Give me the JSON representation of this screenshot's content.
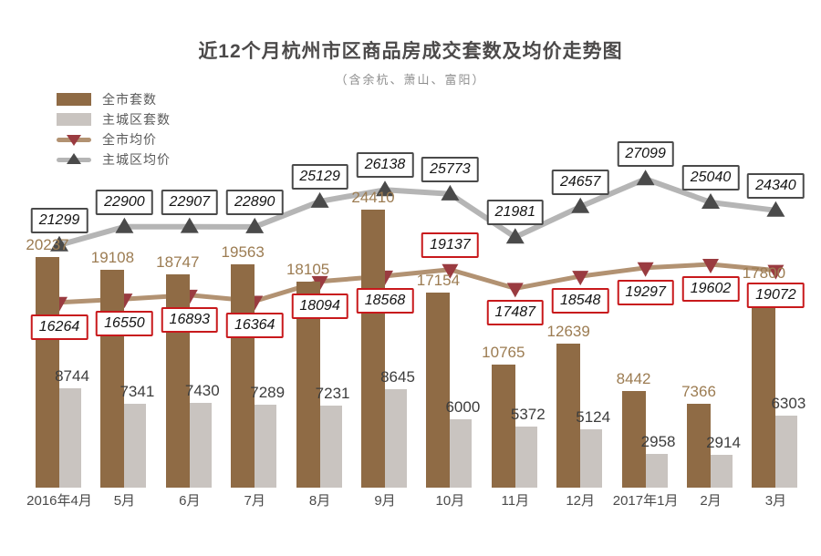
{
  "title": "近12个月杭州市区商品房成交套数及均价走势图",
  "subtitle": "（含余杭、萧山、富阳）",
  "legend": {
    "items": [
      {
        "label": "全市套数",
        "swatch": "bar",
        "color": "#8f6b45"
      },
      {
        "label": "主城区套数",
        "swatch": "bar",
        "color": "#c9c4c0"
      },
      {
        "label": "全市均价",
        "swatch": "line",
        "color": "#b29272",
        "marker": "triangle-down-icon",
        "marker_color": "#9a3b40"
      },
      {
        "label": "主城区均价",
        "swatch": "line",
        "color": "#b5b5b5",
        "marker": "triangle-up-icon",
        "marker_color": "#4a4a4a"
      }
    ]
  },
  "chart_data": {
    "type": "bar",
    "subtype": "grouped bars with two overlaid line series",
    "categories": [
      "2016年4月",
      "5月",
      "6月",
      "7月",
      "8月",
      "9月",
      "10月",
      "11月",
      "12月",
      "2017年1月",
      "2月",
      "3月"
    ],
    "series": [
      {
        "name": "全市套数",
        "type": "bar",
        "color": "#8f6b45",
        "label_color": "#9c7c52",
        "values": [
          20237,
          19108,
          18747,
          19563,
          18105,
          24410,
          17154,
          10765,
          12639,
          8442,
          7366,
          17800
        ]
      },
      {
        "name": "主城区套数",
        "type": "bar",
        "color": "#c9c4c0",
        "label_color": "#3d3d3d",
        "values": [
          8744,
          7341,
          7430,
          7289,
          7231,
          8645,
          6000,
          5372,
          5124,
          2958,
          2914,
          6303
        ]
      },
      {
        "name": "全市均价",
        "type": "line",
        "color": "#b29272",
        "marker": "triangle-down",
        "marker_color": "#9a3b40",
        "label_box_border": "#c8191c",
        "values": [
          16264,
          16550,
          16893,
          16364,
          18094,
          18568,
          19137,
          17487,
          18548,
          19297,
          19602,
          19072
        ],
        "label_position": [
          "below",
          "below",
          "below",
          "below",
          "below",
          "below",
          "above",
          "below",
          "below",
          "below",
          "below",
          "below"
        ]
      },
      {
        "name": "主城区均价",
        "type": "line",
        "color": "#b5b5b5",
        "marker": "triangle-up",
        "marker_color": "#4a4a4a",
        "label_box_border": "#4a4a4a",
        "values": [
          21299,
          22900,
          22907,
          22890,
          25129,
          26138,
          25773,
          21981,
          24657,
          27099,
          25040,
          24340
        ],
        "label_position": [
          "above",
          "above",
          "above",
          "above",
          "above",
          "above",
          "above",
          "above",
          "above",
          "above",
          "above",
          "above"
        ]
      }
    ],
    "xlabel": "",
    "ylabel": "",
    "value_axis_visible": false,
    "grid": false,
    "legend_position": "top-left"
  }
}
